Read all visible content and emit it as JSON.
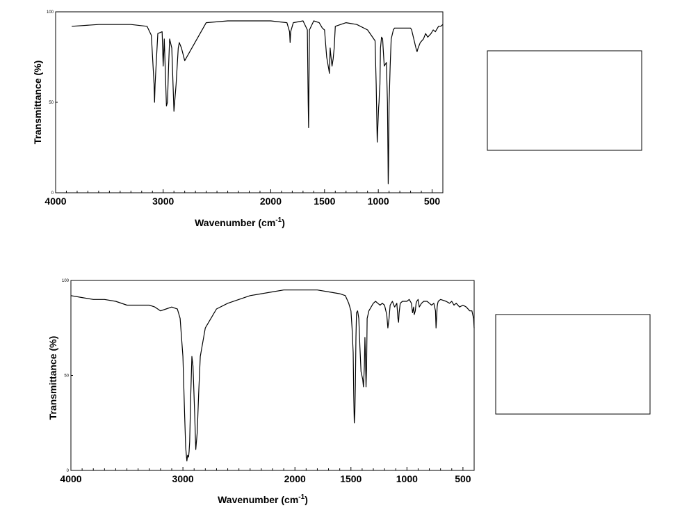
{
  "chart_data": [
    {
      "type": "line",
      "xlabel": "Wavenumber (cm",
      "xlabel_superscript": "-1",
      "xlabel_suffix": ")",
      "ylabel": "Transmittance (%)",
      "xlim": [
        4000,
        400
      ],
      "ylim": [
        0,
        100
      ],
      "x_ticks": [
        4000,
        3000,
        2000,
        1500,
        1000,
        500
      ],
      "y_ticks": [
        0,
        50,
        100
      ],
      "grid": false,
      "series": [
        {
          "x": [
            3850,
            3600,
            3300,
            3150,
            3110,
            3085,
            3080,
            3075,
            3050,
            3010,
            3000,
            2990,
            2970,
            2960,
            2950,
            2940,
            2920,
            2900,
            2880,
            2860,
            2850,
            2830,
            2800,
            2600,
            2400,
            2200,
            2000,
            1850,
            1825,
            1820,
            1815,
            1790,
            1700,
            1660,
            1652,
            1648,
            1645,
            1640,
            1600,
            1550,
            1520,
            1500,
            1480,
            1460,
            1455,
            1452,
            1448,
            1440,
            1430,
            1425,
            1420,
            1410,
            1400,
            1350,
            1300,
            1200,
            1100,
            1030,
            1020,
            1010,
            997,
            993,
            990,
            985,
            980,
            970,
            960,
            955,
            945,
            925,
            915,
            910,
            908,
            905,
            900,
            890,
            880,
            860,
            850,
            700,
            690,
            670,
            650,
            640,
            630,
            610,
            580,
            560,
            540,
            510,
            490,
            470,
            440,
            420,
            400
          ],
          "y": [
            92,
            93,
            93,
            92,
            87,
            60,
            50,
            60,
            88,
            89,
            70,
            85,
            48,
            50,
            70,
            85,
            80,
            45,
            60,
            80,
            83,
            80,
            73,
            94,
            95,
            95,
            95,
            94,
            89,
            83,
            89,
            94,
            95,
            90,
            50,
            36,
            60,
            90,
            95,
            94,
            91,
            90,
            75,
            68,
            66,
            71,
            80,
            75,
            70,
            72,
            74,
            80,
            92,
            93,
            94,
            93,
            90,
            84,
            60,
            28,
            47,
            50,
            55,
            60,
            80,
            86,
            85,
            80,
            70,
            72,
            50,
            20,
            5,
            15,
            48,
            70,
            85,
            90,
            91,
            91,
            90,
            85,
            80,
            78,
            80,
            83,
            85,
            88,
            86,
            88,
            90,
            89,
            92,
            92,
            93
          ]
        }
      ]
    },
    {
      "type": "line",
      "xlabel": "Wavenumber (cm",
      "xlabel_superscript": "-1",
      "xlabel_suffix": ")",
      "ylabel": "Transmittance (%)",
      "xlim": [
        4000,
        400
      ],
      "ylim": [
        0,
        100
      ],
      "x_ticks": [
        4000,
        3000,
        2000,
        1500,
        1000,
        500
      ],
      "y_ticks": [
        0,
        50,
        100
      ],
      "grid": false,
      "series": [
        {
          "x": [
            4000,
            3900,
            3800,
            3700,
            3600,
            3500,
            3400,
            3350,
            3300,
            3250,
            3200,
            3150,
            3100,
            3050,
            3025,
            3000,
            2985,
            2975,
            2965,
            2958,
            2950,
            2945,
            2940,
            2930,
            2920,
            2910,
            2895,
            2885,
            2872,
            2860,
            2845,
            2800,
            2750,
            2700,
            2600,
            2500,
            2400,
            2300,
            2200,
            2100,
            2000,
            1900,
            1800,
            1700,
            1600,
            1550,
            1520,
            1500,
            1490,
            1480,
            1475,
            1470,
            1465,
            1460,
            1455,
            1450,
            1440,
            1430,
            1420,
            1410,
            1395,
            1388,
            1380,
            1375,
            1370,
            1365,
            1360,
            1355,
            1340,
            1320,
            1300,
            1280,
            1260,
            1240,
            1220,
            1200,
            1180,
            1170,
            1160,
            1150,
            1130,
            1110,
            1090,
            1080,
            1075,
            1070,
            1060,
            1040,
            1020,
            1000,
            980,
            960,
            950,
            940,
            935,
            925,
            918,
            912,
            900,
            890,
            870,
            850,
            820,
            800,
            780,
            760,
            745,
            740,
            735,
            730,
            725,
            720,
            700,
            650,
            620,
            600,
            580,
            560,
            530,
            500,
            470,
            440,
            420,
            405,
            400
          ],
          "y": [
            92,
            91,
            90,
            90,
            89,
            87,
            87,
            87,
            87,
            86,
            84,
            85,
            86,
            85,
            80,
            60,
            30,
            12,
            5,
            8,
            7,
            10,
            15,
            40,
            60,
            55,
            30,
            11,
            20,
            40,
            60,
            75,
            80,
            85,
            88,
            90,
            92,
            93,
            94,
            95,
            95,
            95,
            95,
            94,
            93,
            92,
            88,
            84,
            75,
            62,
            40,
            25,
            30,
            45,
            70,
            83,
            84,
            80,
            65,
            52,
            48,
            44,
            55,
            70,
            60,
            44,
            54,
            80,
            84,
            86,
            88,
            89,
            88,
            87,
            88,
            87,
            82,
            75,
            80,
            87,
            89,
            86,
            88,
            80,
            78,
            83,
            88,
            89,
            89,
            89,
            90,
            88,
            83,
            86,
            82,
            84,
            88,
            89,
            90,
            86,
            88,
            89,
            89,
            88,
            87,
            88,
            84,
            75,
            80,
            86,
            88,
            89,
            90,
            89,
            88,
            89,
            87,
            88,
            86,
            87,
            86,
            84,
            84,
            80,
            75
          ]
        }
      ]
    }
  ]
}
